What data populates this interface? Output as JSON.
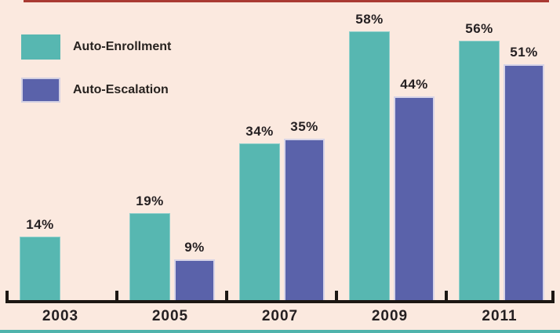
{
  "figure": {
    "background_color": "#fbe9df",
    "top_rule_color": "#a93a33",
    "bottom_rule_color": "#4fb3ac",
    "axis_color": "#1c1713",
    "text_color": "#241f21"
  },
  "legend": {
    "items": [
      {
        "label": "Auto-Enrollment",
        "color": "#57b7b1"
      },
      {
        "label": "Auto-Escalation",
        "color": "#5a62aa"
      }
    ]
  },
  "chart_data": {
    "type": "bar",
    "categories": [
      "2003",
      "2005",
      "2007",
      "2009",
      "2011"
    ],
    "series": [
      {
        "name": "Auto-Enrollment",
        "color": "#57b7b1",
        "values": [
          14,
          19,
          34,
          58,
          56
        ]
      },
      {
        "name": "Auto-Escalation",
        "color": "#5a62aa",
        "values": [
          null,
          9,
          35,
          44,
          51
        ]
      }
    ],
    "value_suffix": "%",
    "title": "",
    "xlabel": "",
    "ylabel": "",
    "ylim": [
      0,
      60
    ],
    "grid": false,
    "legend_position": "top-left",
    "data_labels": true
  }
}
